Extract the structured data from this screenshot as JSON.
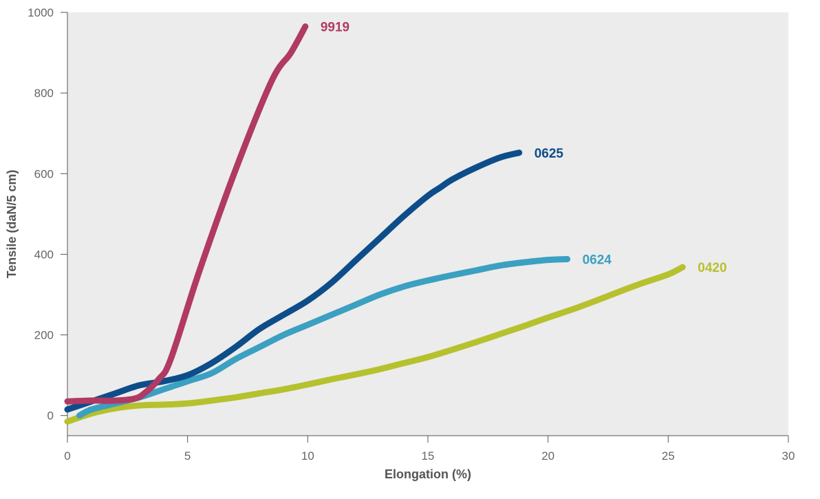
{
  "chart_data": {
    "type": "line",
    "title": "",
    "xlabel": "Elongation (%)",
    "ylabel": "Tensile (daN/5 cm)",
    "xlim": [
      0,
      30
    ],
    "ylim": [
      -50,
      1000
    ],
    "xticks": [
      "0",
      "5",
      "10",
      "15",
      "20",
      "25",
      "30"
    ],
    "yticks": [
      "0",
      "200",
      "400",
      "600",
      "800",
      "1000"
    ],
    "grid": false,
    "background": "#ececec",
    "series": [
      {
        "name": "9919",
        "color": "#b03a64",
        "x": [
          0,
          1,
          2,
          2.8,
          3.2,
          3.8,
          4.3,
          5.5,
          7,
          8.5,
          9.3,
          9.9
        ],
        "y": [
          35,
          37,
          37,
          42,
          55,
          90,
          140,
          360,
          610,
          830,
          900,
          965
        ]
      },
      {
        "name": "0625",
        "color": "#0d4d8a",
        "x": [
          0,
          1,
          2,
          3,
          4,
          5,
          6,
          7,
          8,
          9,
          10,
          11,
          12,
          13,
          14,
          15,
          15.5,
          16,
          17,
          18,
          18.8
        ],
        "y": [
          15,
          35,
          55,
          75,
          85,
          100,
          130,
          170,
          215,
          250,
          285,
          330,
          385,
          440,
          495,
          545,
          565,
          585,
          615,
          640,
          652
        ]
      },
      {
        "name": "0624",
        "color": "#3ba0c1",
        "x": [
          0.5,
          1,
          2,
          3,
          4,
          5,
          6,
          7,
          8,
          9,
          10,
          11,
          12,
          13,
          14,
          15,
          16,
          17,
          18,
          19,
          20,
          20.8
        ],
        "y": [
          0,
          15,
          30,
          45,
          65,
          85,
          105,
          140,
          170,
          200,
          225,
          250,
          275,
          300,
          320,
          335,
          348,
          360,
          372,
          380,
          386,
          388
        ]
      },
      {
        "name": "0420",
        "color": "#b6c12e",
        "x": [
          0,
          1,
          2,
          3,
          4,
          5,
          6,
          7,
          8,
          9,
          10,
          11,
          12,
          13,
          14,
          15,
          16,
          17,
          18,
          19,
          20,
          21,
          22,
          23,
          24,
          25,
          25.6
        ],
        "y": [
          -15,
          5,
          18,
          25,
          27,
          30,
          37,
          45,
          55,
          65,
          77,
          90,
          102,
          115,
          130,
          145,
          163,
          182,
          202,
          222,
          243,
          263,
          285,
          308,
          330,
          350,
          368
        ]
      }
    ]
  }
}
